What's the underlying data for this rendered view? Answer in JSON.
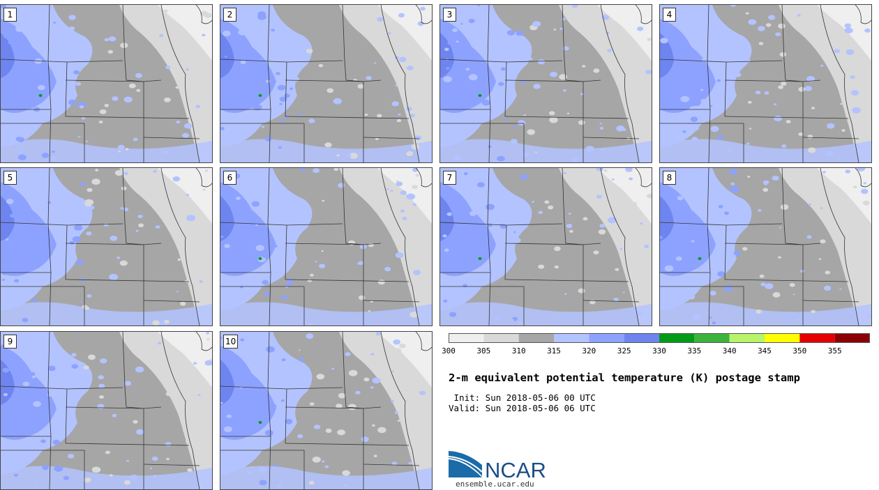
{
  "panels": [
    {
      "label": "1",
      "seed": 11,
      "spot": true
    },
    {
      "label": "2",
      "seed": 23,
      "spot": true
    },
    {
      "label": "3",
      "seed": 37,
      "spot": true
    },
    {
      "label": "4",
      "seed": 41,
      "spot": false
    },
    {
      "label": "5",
      "seed": 53,
      "spot": false
    },
    {
      "label": "6",
      "seed": 67,
      "spot": true
    },
    {
      "label": "7",
      "seed": 71,
      "spot": true
    },
    {
      "label": "8",
      "seed": 83,
      "spot": true
    },
    {
      "label": "9",
      "seed": 97,
      "spot": false
    },
    {
      "label": "10",
      "seed": 101,
      "spot": true
    }
  ],
  "colorbar": {
    "ticks": [
      "300",
      "305",
      "310",
      "315",
      "320",
      "325",
      "330",
      "335",
      "340",
      "345",
      "350",
      "355"
    ],
    "colors": [
      "#efefef",
      "#d9d9d9",
      "#a6a6a6",
      "#b3c3ff",
      "#8da2ff",
      "#6e85ef",
      "#009c17",
      "#3db23d",
      "#b7f46b",
      "#ffff00",
      "#e50000",
      "#8b0000"
    ]
  },
  "title": "2-m equivalent potential temperature (K) postage stamp",
  "init": " Init: Sun 2018-05-06 00 UTC",
  "valid": "Valid: Sun 2018-05-06 06 UTC",
  "logo": {
    "text": "NCAR",
    "url": "ensemble.ucar.edu"
  }
}
